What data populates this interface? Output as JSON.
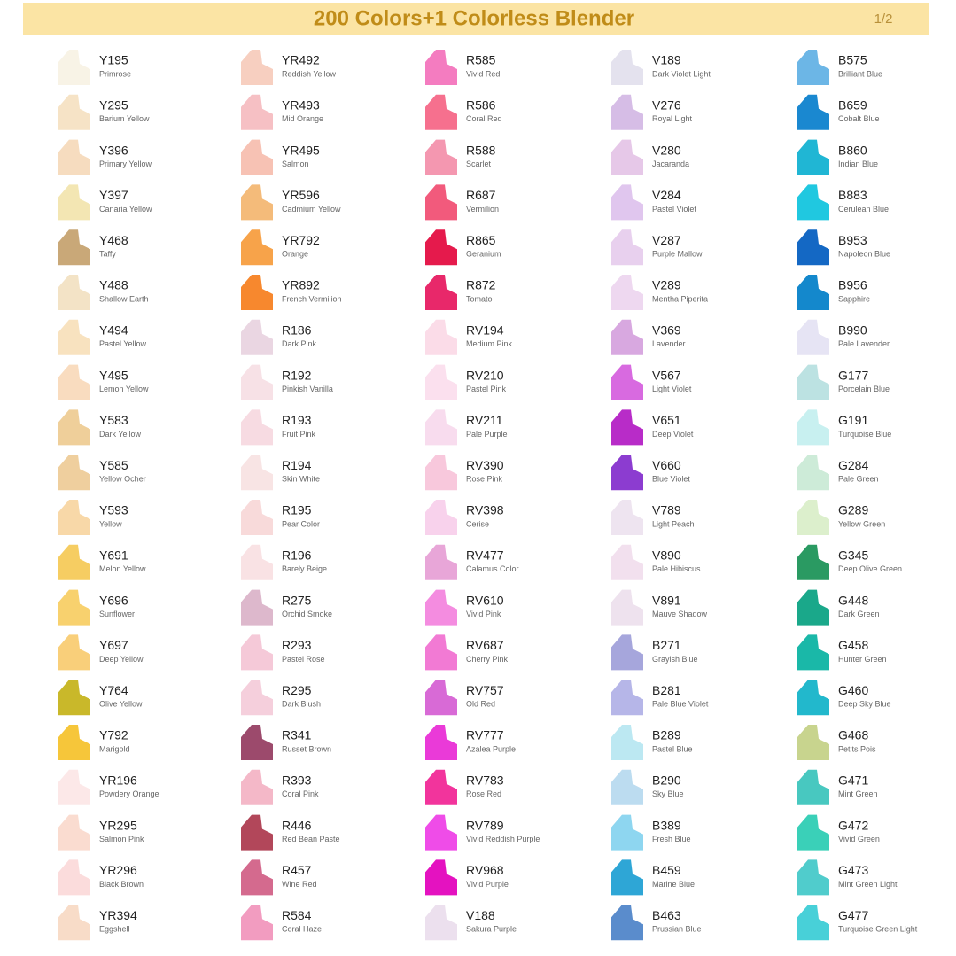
{
  "header": {
    "title": "200 Colors+1 Colorless Blender",
    "page": "1/2"
  },
  "columns": [
    [
      {
        "code": "Y195",
        "name": "Primrose",
        "color": "#f8f3e6"
      },
      {
        "code": "Y295",
        "name": "Barium Yellow",
        "color": "#f6e3c6"
      },
      {
        "code": "Y396",
        "name": "Primary Yellow",
        "color": "#f6dcbf"
      },
      {
        "code": "Y397",
        "name": "Canaria Yellow",
        "color": "#f3e6b3"
      },
      {
        "code": "Y468",
        "name": "Taffy",
        "color": "#c9a878"
      },
      {
        "code": "Y488",
        "name": "Shallow Earth",
        "color": "#f3e3c6"
      },
      {
        "code": "Y494",
        "name": "Pastel Yellow",
        "color": "#f8e2bf"
      },
      {
        "code": "Y495",
        "name": "Lemon Yellow",
        "color": "#f9dcbf"
      },
      {
        "code": "Y583",
        "name": "Dark Yellow",
        "color": "#efcf9a"
      },
      {
        "code": "Y585",
        "name": "Yellow Ocher",
        "color": "#efcf9e"
      },
      {
        "code": "Y593",
        "name": "Yellow",
        "color": "#f8d8a8"
      },
      {
        "code": "Y691",
        "name": "Melon Yellow",
        "color": "#f6cd62"
      },
      {
        "code": "Y696",
        "name": "Sunflower",
        "color": "#f8d16e"
      },
      {
        "code": "Y697",
        "name": "Deep Yellow",
        "color": "#f9cf7a"
      },
      {
        "code": "Y764",
        "name": "Olive Yellow",
        "color": "#c9b82a"
      },
      {
        "code": "Y792",
        "name": "Marigold",
        "color": "#f6c63a"
      },
      {
        "code": "YR196",
        "name": "Powdery Orange",
        "color": "#fce8e8"
      },
      {
        "code": "YR295",
        "name": "Salmon Pink",
        "color": "#fadcd0"
      },
      {
        "code": "YR296",
        "name": "Black Brown",
        "color": "#fbdcdc"
      },
      {
        "code": "YR394",
        "name": "Eggshell",
        "color": "#f8dcc8"
      }
    ],
    [
      {
        "code": "YR492",
        "name": "Reddish Yellow",
        "color": "#f7cfc0"
      },
      {
        "code": "YR493",
        "name": "Mid Orange",
        "color": "#f6c0c4"
      },
      {
        "code": "YR495",
        "name": "Salmon",
        "color": "#f7c2b4"
      },
      {
        "code": "YR596",
        "name": "Cadmium Yellow",
        "color": "#f4bb7a"
      },
      {
        "code": "YR792",
        "name": "Orange",
        "color": "#f7a34a"
      },
      {
        "code": "YR892",
        "name": "French Vermilion",
        "color": "#f7882e"
      },
      {
        "code": "R186",
        "name": "Dark Pink",
        "color": "#ead6e2"
      },
      {
        "code": "R192",
        "name": "Pinkish Vanilla",
        "color": "#f7e1e6"
      },
      {
        "code": "R193",
        "name": "Fruit Pink",
        "color": "#f7dbe2"
      },
      {
        "code": "R194",
        "name": "Skin White",
        "color": "#f8e4e4"
      },
      {
        "code": "R195",
        "name": "Pear Color",
        "color": "#f8dada"
      },
      {
        "code": "R196",
        "name": "Barely Beige",
        "color": "#f9e2e4"
      },
      {
        "code": "R275",
        "name": "Orchid Smoke",
        "color": "#ddb8cc"
      },
      {
        "code": "R293",
        "name": "Pastel Rose",
        "color": "#f5c9d8"
      },
      {
        "code": "R295",
        "name": "Dark Blush",
        "color": "#f5cfdc"
      },
      {
        "code": "R341",
        "name": "Russet Brown",
        "color": "#9c4a6c"
      },
      {
        "code": "R393",
        "name": "Coral Pink",
        "color": "#f4b8c8"
      },
      {
        "code": "R446",
        "name": "Red Bean Paste",
        "color": "#b2475a"
      },
      {
        "code": "R457",
        "name": "Wine Red",
        "color": "#d46a8e"
      },
      {
        "code": "R584",
        "name": "Coral Haze",
        "color": "#f29cc0"
      }
    ],
    [
      {
        "code": "R585",
        "name": "Vivid Red",
        "color": "#f47cc0"
      },
      {
        "code": "R586",
        "name": "Coral Red",
        "color": "#f6708e"
      },
      {
        "code": "R588",
        "name": "Scarlet",
        "color": "#f497b0"
      },
      {
        "code": "R687",
        "name": "Vermilion",
        "color": "#f25a7c"
      },
      {
        "code": "R865",
        "name": "Geranium",
        "color": "#e51a4c"
      },
      {
        "code": "R872",
        "name": "Tomato",
        "color": "#e8286a"
      },
      {
        "code": "RV194",
        "name": "Medium Pink",
        "color": "#fbdce8"
      },
      {
        "code": "RV210",
        "name": "Pastel Pink",
        "color": "#fbe0ee"
      },
      {
        "code": "RV211",
        "name": "Pale Purple",
        "color": "#f8dcee"
      },
      {
        "code": "RV390",
        "name": "Rose Pink",
        "color": "#f8c8dc"
      },
      {
        "code": "RV398",
        "name": "Cerise",
        "color": "#f8d2ec"
      },
      {
        "code": "RV477",
        "name": "Calamus Color",
        "color": "#e8a6d8"
      },
      {
        "code": "RV610",
        "name": "Vivid Pink",
        "color": "#f48ce0"
      },
      {
        "code": "RV687",
        "name": "Cherry Pink",
        "color": "#f27ad4"
      },
      {
        "code": "RV757",
        "name": "Old Red",
        "color": "#d86ad6"
      },
      {
        "code": "RV777",
        "name": "Azalea Purple",
        "color": "#ea3ad8"
      },
      {
        "code": "RV783",
        "name": "Rose Red",
        "color": "#f2349c"
      },
      {
        "code": "RV789",
        "name": "Vivid Reddish Purple",
        "color": "#ef4ce8"
      },
      {
        "code": "RV968",
        "name": "Vivid Purple",
        "color": "#e412c0"
      },
      {
        "code": "V188",
        "name": "Sakura Purple",
        "color": "#ece0ee"
      }
    ],
    [
      {
        "code": "V189",
        "name": "Dark Violet Light",
        "color": "#e4e2ee"
      },
      {
        "code": "V276",
        "name": "Royal Light",
        "color": "#d6bde6"
      },
      {
        "code": "V280",
        "name": "Jacaranda",
        "color": "#e6c8e8"
      },
      {
        "code": "V284",
        "name": "Pastel Violet",
        "color": "#e0c6ee"
      },
      {
        "code": "V287",
        "name": "Purple Mallow",
        "color": "#e8d0ee"
      },
      {
        "code": "V289",
        "name": "Mentha Piperita",
        "color": "#eed8f0"
      },
      {
        "code": "V369",
        "name": "Lavender",
        "color": "#d8a8e0"
      },
      {
        "code": "V567",
        "name": "Light Violet",
        "color": "#d86ae0"
      },
      {
        "code": "V651",
        "name": "Deep Violet",
        "color": "#b82cc8"
      },
      {
        "code": "V660",
        "name": "Blue Violet",
        "color": "#8c3cd0"
      },
      {
        "code": "V789",
        "name": "Light Peach",
        "color": "#eee4f0"
      },
      {
        "code": "V890",
        "name": "Pale Hibiscus",
        "color": "#f2e0ee"
      },
      {
        "code": "V891",
        "name": "Mauve Shadow",
        "color": "#eee2ee"
      },
      {
        "code": "B271",
        "name": "Grayish Blue",
        "color": "#a6a6dc"
      },
      {
        "code": "B281",
        "name": "Pale Blue Violet",
        "color": "#b6b6e8"
      },
      {
        "code": "B289",
        "name": "Pastel Blue",
        "color": "#bce8f2"
      },
      {
        "code": "B290",
        "name": "Sky Blue",
        "color": "#bcdcf0"
      },
      {
        "code": "B389",
        "name": "Fresh Blue",
        "color": "#8ed6f0"
      },
      {
        "code": "B459",
        "name": "Marine Blue",
        "color": "#2ea6d6"
      },
      {
        "code": "B463",
        "name": "Prussian Blue",
        "color": "#5a8ccc"
      }
    ],
    [
      {
        "code": "B575",
        "name": "Brilliant Blue",
        "color": "#6cb6e6"
      },
      {
        "code": "B659",
        "name": "Cobalt Blue",
        "color": "#1a88d0"
      },
      {
        "code": "B860",
        "name": "Indian Blue",
        "color": "#20b6d4"
      },
      {
        "code": "B883",
        "name": "Cerulean Blue",
        "color": "#20c8e0"
      },
      {
        "code": "B953",
        "name": "Napoleon Blue",
        "color": "#1468c4"
      },
      {
        "code": "B956",
        "name": "Sapphire",
        "color": "#1488cc"
      },
      {
        "code": "B990",
        "name": "Pale Lavender",
        "color": "#e6e4f4"
      },
      {
        "code": "G177",
        "name": "Porcelain Blue",
        "color": "#bce2e2"
      },
      {
        "code": "G191",
        "name": "Turquoise Blue",
        "color": "#c8f0f0"
      },
      {
        "code": "G284",
        "name": "Pale Green",
        "color": "#cdebd8"
      },
      {
        "code": "G289",
        "name": "Yellow Green",
        "color": "#dcefcc"
      },
      {
        "code": "G345",
        "name": "Deep Olive Green",
        "color": "#2a9a62"
      },
      {
        "code": "G448",
        "name": "Dark Green",
        "color": "#1aa88a"
      },
      {
        "code": "G458",
        "name": "Hunter Green",
        "color": "#1ab8a8"
      },
      {
        "code": "G460",
        "name": "Deep Sky Blue",
        "color": "#22b8cc"
      },
      {
        "code": "G468",
        "name": "Petits Pois",
        "color": "#c8d48e"
      },
      {
        "code": "G471",
        "name": "Mint Green",
        "color": "#48c8c0"
      },
      {
        "code": "G472",
        "name": "Vivid Green",
        "color": "#3ad0b8"
      },
      {
        "code": "G473",
        "name": "Mint Green Light",
        "color": "#50cccc"
      },
      {
        "code": "G477",
        "name": "Turquoise Green Light",
        "color": "#48d0d8"
      }
    ]
  ]
}
